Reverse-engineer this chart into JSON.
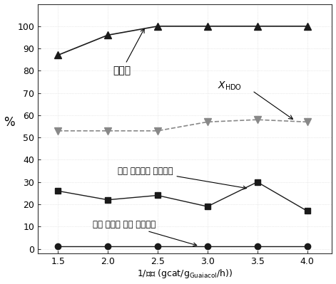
{
  "x": [
    1.5,
    2.0,
    2.5,
    3.0,
    3.5,
    4.0
  ],
  "conversion": [
    87,
    96,
    100,
    100,
    100,
    100
  ],
  "xhdo": [
    53,
    53,
    53,
    57,
    58,
    57
  ],
  "hydrocarbon_methylation": [
    26,
    22,
    24,
    19,
    30,
    17
  ],
  "oxygenate_methylation": [
    1,
    1,
    1,
    1,
    1,
    1
  ],
  "ylabel": "%",
  "ylim": [
    -2,
    110
  ],
  "xlim": [
    1.3,
    4.25
  ],
  "yticks": [
    0,
    10,
    20,
    30,
    40,
    50,
    60,
    70,
    80,
    90,
    100
  ],
  "xticks": [
    1.5,
    2.0,
    2.5,
    3.0,
    3.5,
    4.0
  ],
  "color_dark": "#222222",
  "color_mid": "#777777",
  "color_light": "#aaaaaa"
}
